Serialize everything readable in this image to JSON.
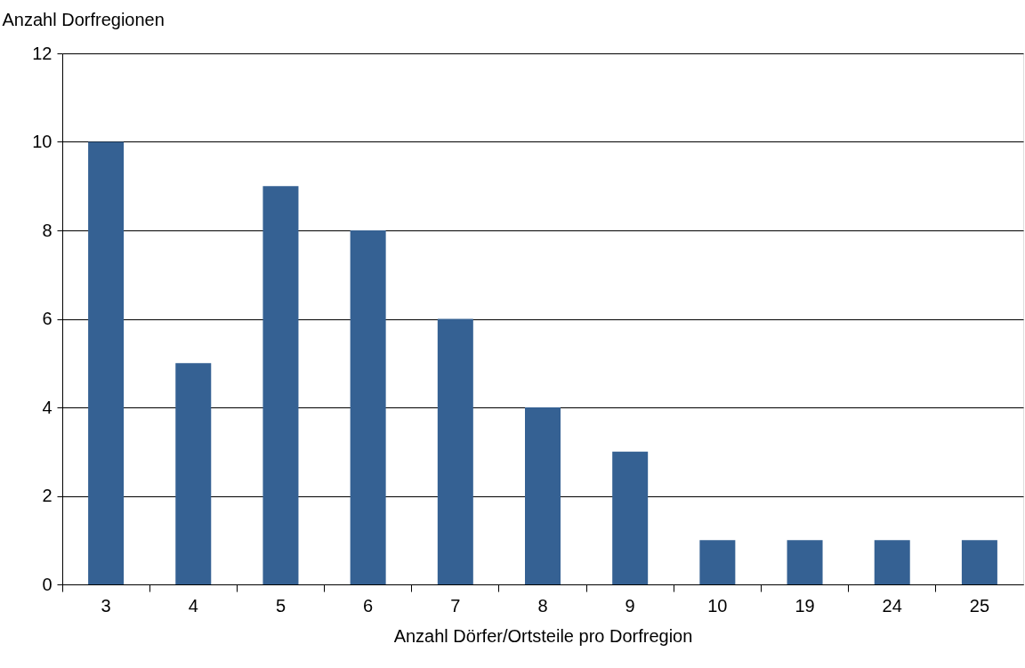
{
  "chart_data": {
    "type": "bar",
    "ylabel": "Anzahl Dorfregionen",
    "xlabel": "Anzahl Dörfer/Ortsteile pro Dorfregion",
    "categories": [
      "3",
      "4",
      "5",
      "6",
      "7",
      "8",
      "9",
      "10",
      "19",
      "24",
      "25"
    ],
    "values": [
      10,
      5,
      9,
      8,
      6,
      4,
      3,
      1,
      1,
      1,
      1
    ],
    "color": "#356193",
    "ylim": [
      0,
      12
    ],
    "yticks": [
      0,
      2,
      4,
      6,
      8,
      10,
      12
    ],
    "grid": "y"
  }
}
